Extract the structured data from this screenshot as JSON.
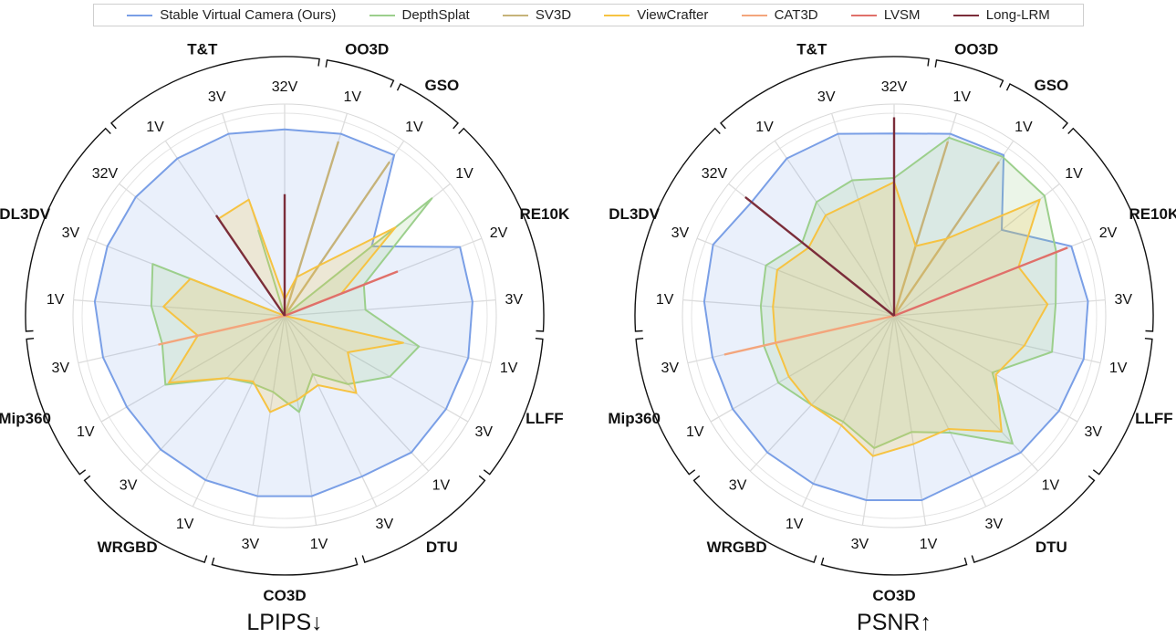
{
  "legend": [
    {
      "label": "Stable Virtual Camera (Ours)",
      "color": "#7a9fe6"
    },
    {
      "label": "DepthSplat",
      "color": "#9ccf8c"
    },
    {
      "label": "SV3D",
      "color": "#c6b37a"
    },
    {
      "label": "ViewCrafter",
      "color": "#f6c342"
    },
    {
      "label": "CAT3D",
      "color": "#f3a57c"
    },
    {
      "label": "LVSM",
      "color": "#e0706a"
    },
    {
      "label": "Long-LRM",
      "color": "#7b2d3a"
    }
  ],
  "chart_data": [
    {
      "type": "radar",
      "title": "LPIPS↓",
      "spokes": [
        {
          "tick": "32V",
          "group": "T&T"
        },
        {
          "tick": "1V",
          "group": "OO3D"
        },
        {
          "tick": "1V",
          "group": "GSO"
        },
        {
          "tick": "1V",
          "group": "RE10K"
        },
        {
          "tick": "2V",
          "group": "RE10K"
        },
        {
          "tick": "3V",
          "group": "RE10K"
        },
        {
          "tick": "1V",
          "group": "LLFF"
        },
        {
          "tick": "3V",
          "group": "LLFF"
        },
        {
          "tick": "1V",
          "group": "DTU"
        },
        {
          "tick": "3V",
          "group": "DTU"
        },
        {
          "tick": "1V",
          "group": "CO3D"
        },
        {
          "tick": "3V",
          "group": "CO3D"
        },
        {
          "tick": "1V",
          "group": "WRGBD"
        },
        {
          "tick": "3V",
          "group": "WRGBD"
        },
        {
          "tick": "1V",
          "group": "Mip360"
        },
        {
          "tick": "3V",
          "group": "Mip360"
        },
        {
          "tick": "1V",
          "group": "DL3DV"
        },
        {
          "tick": "3V",
          "group": "DL3DV"
        },
        {
          "tick": "32V",
          "group": "DL3DV"
        },
        {
          "tick": "1V",
          "group": "T&T"
        },
        {
          "tick": "3V",
          "group": "T&T"
        }
      ],
      "groups": [
        "T&T",
        "OO3D",
        "GSO",
        "RE10K",
        "LLFF",
        "DTU",
        "CO3D",
        "WRGBD",
        "Mip360",
        "DL3DV"
      ],
      "range": [
        0,
        1
      ],
      "series": [
        {
          "name": "Stable Virtual Camera (Ours)",
          "color": "#7a9fe6",
          "values": [
            0.92,
            0.94,
            0.96,
            0.55,
            0.93,
            0.93,
            0.93,
            0.92,
            0.92,
            0.88,
            0.9,
            0.9,
            0.9,
            0.9,
            0.9,
            0.92,
            0.94,
            0.94,
            0.94,
            0.94,
            0.94
          ]
        },
        {
          "name": "DepthSplat",
          "color": "#9ccf8c",
          "values": [
            0.0,
            0.0,
            0.0,
            0.93,
            0.42,
            0.4,
            0.68,
            0.6,
            0.46,
            0.32,
            0.48,
            0.38,
            0.37,
            0.42,
            0.68,
            0.62,
            0.66,
            0.7,
            0.0,
            0.0,
            0.44
          ]
        },
        {
          "name": "SV3D",
          "color": "#c6b37a",
          "values": [
            0.0,
            0.9,
            0.92,
            0.0,
            0.0,
            0.0,
            0.0,
            0.0,
            0.0,
            0.0,
            0.0,
            0.0,
            0.0,
            0.0,
            0.0,
            0.0,
            0.0,
            0.0,
            0.0,
            0.0,
            0.0
          ]
        },
        {
          "name": "ViewCrafter",
          "color": "#f6c342",
          "values": [
            0.08,
            0.2,
            0.3,
            0.7,
            0.3,
            0.0,
            0.6,
            0.36,
            0.52,
            0.38,
            0.42,
            0.48,
            0.36,
            0.42,
            0.66,
            0.44,
            0.6,
            0.5,
            0.0,
            0.58,
            0.6
          ]
        },
        {
          "name": "CAT3D",
          "color": "#f3a57c",
          "values": [
            0,
            0,
            0,
            0,
            0,
            0,
            0,
            0,
            0,
            0,
            0,
            0,
            0,
            0,
            0,
            0.64,
            0,
            0,
            0,
            0,
            0
          ]
        },
        {
          "name": "LVSM",
          "color": "#e0706a",
          "values": [
            0,
            0,
            0,
            0,
            0.6,
            0,
            0,
            0,
            0,
            0,
            0,
            0,
            0,
            0,
            0,
            0,
            0,
            0,
            0,
            0,
            0
          ]
        },
        {
          "name": "Long-LRM",
          "color": "#7b2d3a",
          "values": [
            0.6,
            0,
            0,
            0,
            0,
            0,
            0,
            0,
            0,
            0,
            0,
            0,
            0,
            0,
            0,
            0,
            0,
            0,
            0,
            0.6,
            0
          ]
        }
      ]
    },
    {
      "type": "radar",
      "title": "PSNR↑",
      "spokes": [
        {
          "tick": "32V",
          "group": "T&T"
        },
        {
          "tick": "1V",
          "group": "OO3D"
        },
        {
          "tick": "1V",
          "group": "GSO"
        },
        {
          "tick": "1V",
          "group": "RE10K"
        },
        {
          "tick": "2V",
          "group": "RE10K"
        },
        {
          "tick": "3V",
          "group": "RE10K"
        },
        {
          "tick": "1V",
          "group": "LLFF"
        },
        {
          "tick": "3V",
          "group": "LLFF"
        },
        {
          "tick": "1V",
          "group": "DTU"
        },
        {
          "tick": "3V",
          "group": "DTU"
        },
        {
          "tick": "1V",
          "group": "CO3D"
        },
        {
          "tick": "3V",
          "group": "CO3D"
        },
        {
          "tick": "1V",
          "group": "WRGBD"
        },
        {
          "tick": "3V",
          "group": "WRGBD"
        },
        {
          "tick": "1V",
          "group": "Mip360"
        },
        {
          "tick": "3V",
          "group": "Mip360"
        },
        {
          "tick": "1V",
          "group": "DL3DV"
        },
        {
          "tick": "3V",
          "group": "DL3DV"
        },
        {
          "tick": "32V",
          "group": "DL3DV"
        },
        {
          "tick": "1V",
          "group": "T&T"
        },
        {
          "tick": "3V",
          "group": "T&T"
        }
      ],
      "groups": [
        "T&T",
        "OO3D",
        "GSO",
        "RE10K",
        "LLFF",
        "DTU",
        "CO3D",
        "WRGBD",
        "Mip360",
        "DL3DV"
      ],
      "range": [
        0,
        1
      ],
      "series": [
        {
          "name": "Stable Virtual Camera (Ours)",
          "color": "#7a9fe6",
          "values": [
            0.9,
            0.94,
            0.96,
            0.68,
            0.94,
            0.96,
            0.96,
            0.94,
            0.92,
            0.88,
            0.92,
            0.92,
            0.92,
            0.92,
            0.92,
            0.92,
            0.94,
            0.96,
            0.9,
            0.94,
            0.94
          ]
        },
        {
          "name": "DepthSplat",
          "color": "#9ccf8c",
          "values": [
            0.68,
            0.92,
            0.95,
            0.95,
            0.86,
            0.8,
            0.8,
            0.56,
            0.86,
            0.64,
            0.58,
            0.66,
            0.58,
            0.6,
            0.66,
            0.66,
            0.66,
            0.68,
            0.58,
            0.68,
            0.7
          ]
        },
        {
          "name": "SV3D",
          "color": "#c6b37a",
          "values": [
            0.0,
            0.9,
            0.92,
            0.0,
            0.0,
            0.0,
            0.0,
            0.0,
            0.0,
            0.0,
            0.0,
            0.0,
            0.0,
            0.0,
            0.0,
            0.0,
            0.0,
            0.0,
            0.0,
            0.0,
            0.0
          ]
        },
        {
          "name": "ViewCrafter",
          "color": "#f6c342",
          "values": [
            0.66,
            0.36,
            0.46,
            0.92,
            0.66,
            0.76,
            0.66,
            0.58,
            0.78,
            0.62,
            0.64,
            0.7,
            0.6,
            0.6,
            0.6,
            0.6,
            0.6,
            0.62,
            0.54,
            0.6,
            0.6
          ]
        },
        {
          "name": "CAT3D",
          "color": "#f3a57c",
          "values": [
            0,
            0,
            0,
            0,
            0,
            0,
            0,
            0,
            0,
            0,
            0,
            0,
            0,
            0,
            0,
            0.86,
            0,
            0,
            0,
            0,
            0
          ]
        },
        {
          "name": "LVSM",
          "color": "#e0706a",
          "values": [
            0,
            0,
            0,
            0,
            0.92,
            0,
            0,
            0,
            0,
            0,
            0,
            0,
            0,
            0,
            0,
            0,
            0,
            0,
            0,
            0,
            0
          ]
        },
        {
          "name": "Long-LRM",
          "color": "#7b2d3a",
          "values": [
            0.98,
            0,
            0,
            0,
            0,
            0,
            0,
            0,
            0,
            0,
            0,
            0,
            0,
            0,
            0,
            0,
            0,
            0,
            0.94,
            0,
            0
          ]
        }
      ]
    }
  ]
}
